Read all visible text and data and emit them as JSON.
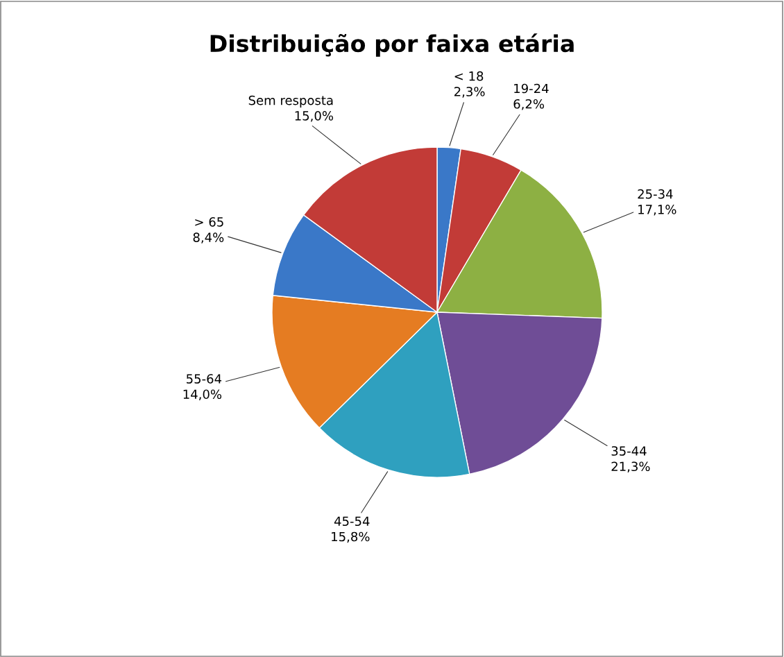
{
  "chart_data": {
    "type": "pie",
    "title": "Distribuição por faixa etária",
    "categories": [
      "< 18",
      "19-24",
      "25-34",
      "35-44",
      "45-54",
      "55-64",
      "> 65",
      "Sem resposta"
    ],
    "values": [
      2.3,
      6.2,
      17.1,
      21.3,
      15.8,
      14.0,
      8.4,
      15.0
    ],
    "value_labels": [
      "2,3%",
      "6,2%",
      "17,1%",
      "21,3%",
      "15,8%",
      "14,0%",
      "8,4%",
      "15,0%"
    ],
    "colors": [
      "#3a78c8",
      "#c23b37",
      "#8db043",
      "#6f4d96",
      "#2fa0bf",
      "#e57c22",
      "#3a78c8",
      "#c23b37"
    ],
    "legend": false
  }
}
